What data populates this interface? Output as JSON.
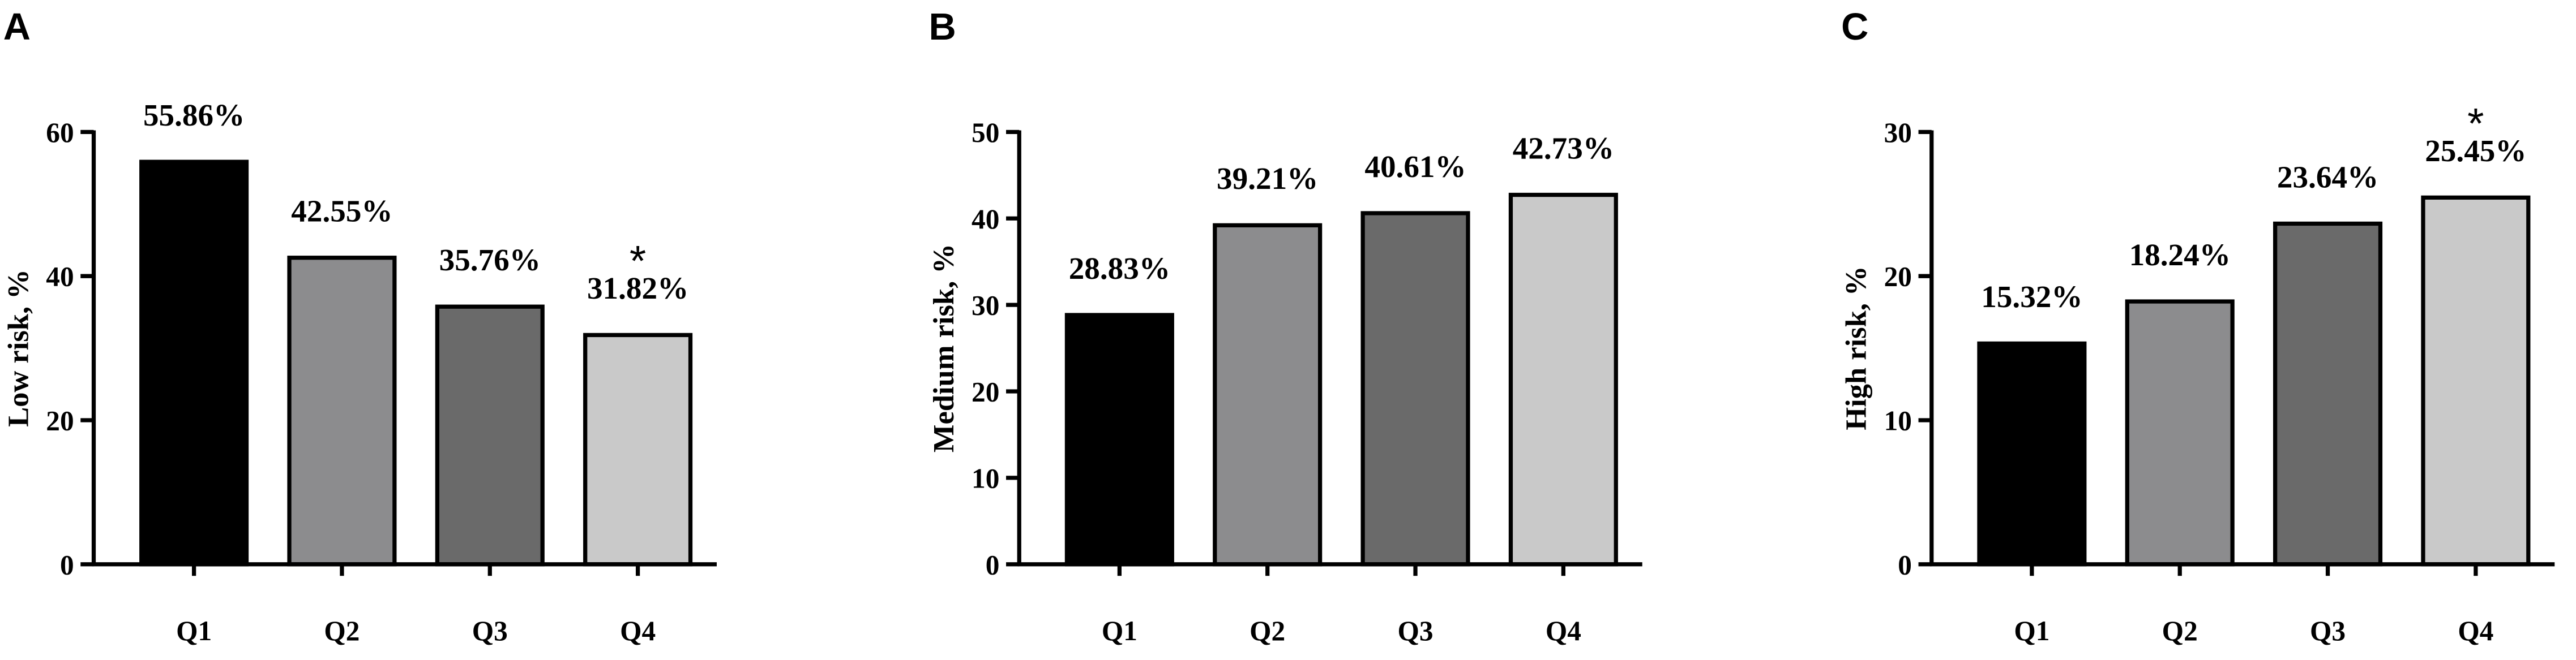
{
  "chart_data": [
    {
      "type": "bar",
      "panel": "A",
      "ylabel": "Low risk, %",
      "categories": [
        "Q1",
        "Q2",
        "Q3",
        "Q4"
      ],
      "values": [
        55.86,
        42.55,
        35.76,
        31.82
      ],
      "value_labels": [
        "55.86%",
        "42.55%",
        "35.76%",
        "31.82%"
      ],
      "colors": [
        "#000000",
        "#8c8c8e",
        "#6a6a6a",
        "#c9c9c9"
      ],
      "ylim": [
        0,
        60
      ],
      "yticks": [
        0,
        20,
        40,
        60
      ],
      "annotations": [
        {
          "text": "*",
          "category": "Q4"
        }
      ]
    },
    {
      "type": "bar",
      "panel": "B",
      "ylabel": "Medium risk, %",
      "categories": [
        "Q1",
        "Q2",
        "Q3",
        "Q4"
      ],
      "values": [
        28.83,
        39.21,
        40.61,
        42.73
      ],
      "value_labels": [
        "28.83%",
        "39.21%",
        "40.61%",
        "42.73%"
      ],
      "colors": [
        "#000000",
        "#8c8c8e",
        "#6a6a6a",
        "#c9c9c9"
      ],
      "ylim": [
        0,
        50
      ],
      "yticks": [
        0,
        10,
        20,
        30,
        40,
        50
      ]
    },
    {
      "type": "bar",
      "panel": "C",
      "ylabel": "High risk, %",
      "categories": [
        "Q1",
        "Q2",
        "Q3",
        "Q4"
      ],
      "values": [
        15.32,
        18.24,
        23.64,
        25.45
      ],
      "value_labels": [
        "15.32%",
        "18.24%",
        "23.64%",
        "25.45%"
      ],
      "colors": [
        "#000000",
        "#8c8c8e",
        "#6a6a6a",
        "#c9c9c9"
      ],
      "ylim": [
        0,
        30
      ],
      "yticks": [
        0,
        10,
        20,
        30
      ],
      "annotations": [
        {
          "text": "*",
          "category": "Q4"
        }
      ]
    }
  ]
}
